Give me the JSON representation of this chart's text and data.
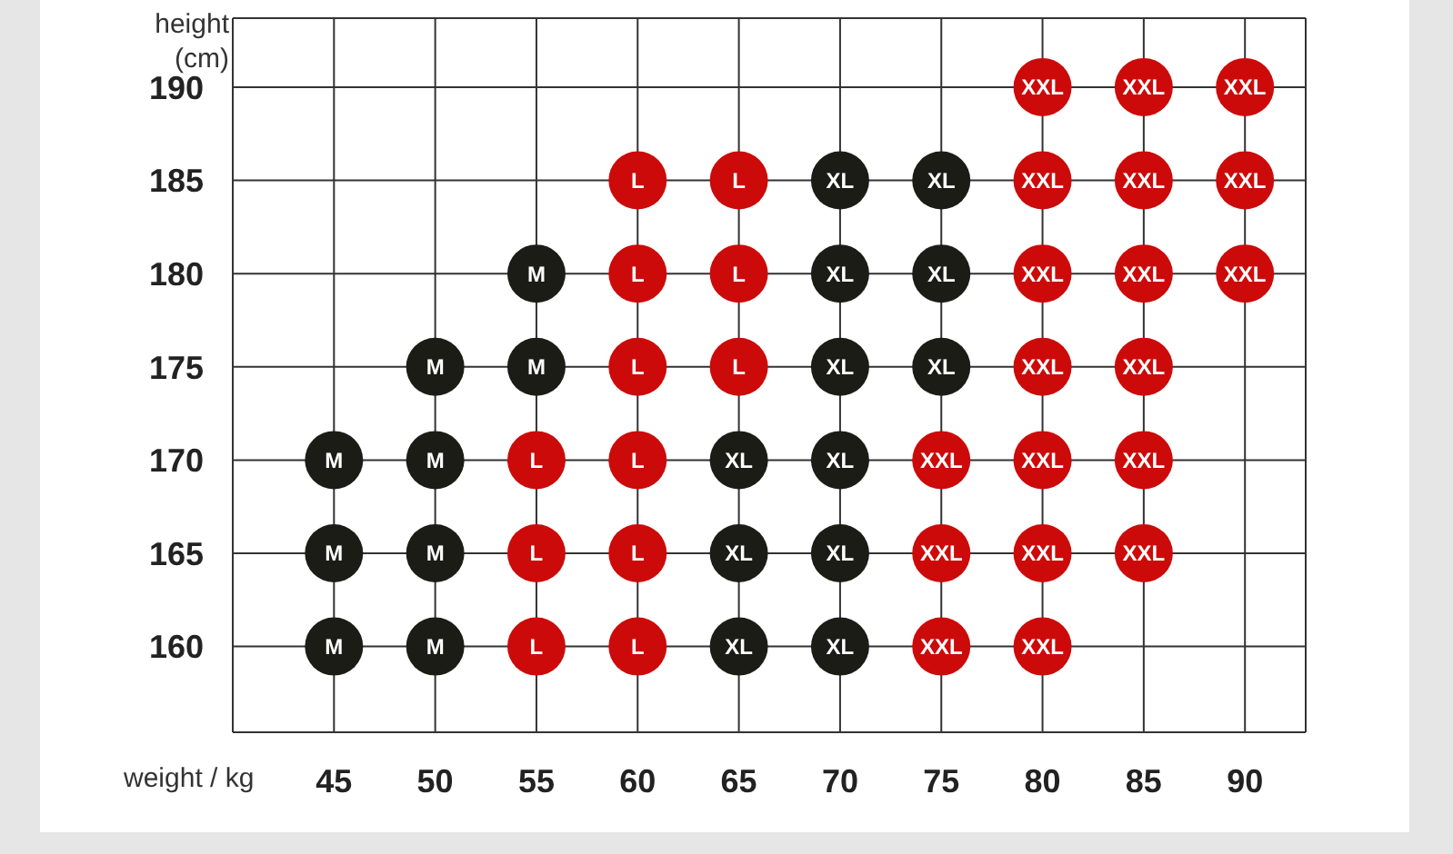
{
  "chart_data": {
    "type": "scatter",
    "xlabel": "weight / kg",
    "ylabel": "height (cm)",
    "xlim": [
      40,
      93
    ],
    "xticks": [
      45,
      50,
      55,
      60,
      65,
      70,
      75,
      80,
      85,
      90
    ],
    "ylim": [
      155.4,
      193.7
    ],
    "yticks": [
      160,
      165,
      170,
      175,
      180,
      185,
      190
    ],
    "grid": true,
    "marker": "circle",
    "series": [
      {
        "name": "M",
        "color": "#1c1c17",
        "x": [
          45,
          45,
          45,
          50,
          50,
          50,
          50,
          55,
          55
        ],
        "values": [
          170,
          165,
          160,
          175,
          170,
          165,
          160,
          180,
          175
        ]
      },
      {
        "name": "L",
        "color": "#cc0a0a",
        "x": [
          55,
          55,
          55,
          60,
          60,
          60,
          60,
          60,
          60,
          65,
          65,
          65
        ],
        "values": [
          170,
          165,
          160,
          185,
          180,
          175,
          170,
          165,
          160,
          185,
          180,
          175
        ]
      },
      {
        "name": "XL",
        "color": "#1c1c17",
        "x": [
          65,
          65,
          65,
          70,
          70,
          70,
          70,
          70,
          70,
          75,
          75,
          75
        ],
        "values": [
          170,
          165,
          160,
          185,
          180,
          175,
          170,
          165,
          160,
          185,
          180,
          175
        ]
      },
      {
        "name": "XXL",
        "color": "#cc0a0a",
        "x": [
          75,
          75,
          75,
          80,
          80,
          80,
          80,
          80,
          80,
          80,
          85,
          85,
          85,
          85,
          85,
          85,
          90,
          90,
          90
        ],
        "values": [
          170,
          165,
          160,
          190,
          185,
          180,
          175,
          170,
          165,
          160,
          190,
          185,
          180,
          175,
          170,
          165,
          190,
          185,
          180
        ]
      }
    ]
  }
}
